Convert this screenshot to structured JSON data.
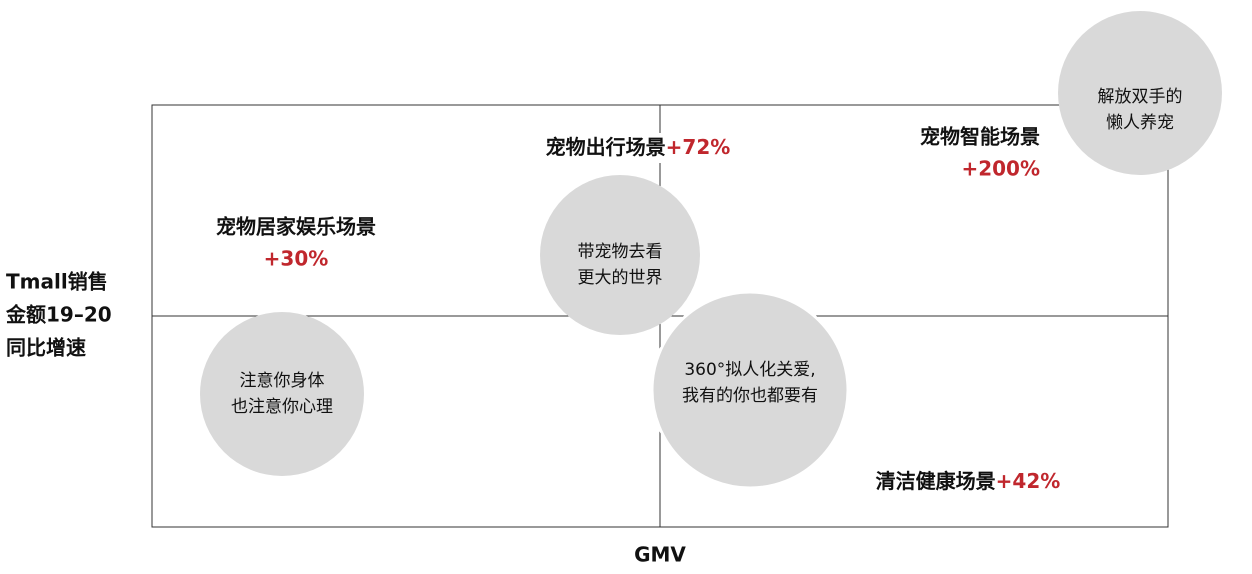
{
  "y_axis_label": [
    "Tmall销售",
    "金额19–20",
    "同比增速"
  ],
  "x_axis_label": "GMV",
  "quadrants": [
    {
      "scene": "宠物居家娱乐场景",
      "growth": "+30%"
    },
    {
      "scene": "宠物出行场景",
      "growth": "+72%"
    },
    {
      "scene": "宠物智能场景",
      "growth": "+200%"
    },
    {
      "scene": "清洁健康场景",
      "growth": "+42%"
    }
  ],
  "circles": [
    {
      "lines": [
        "注意你身体",
        "也注意你心理"
      ]
    },
    {
      "lines": [
        "带宠物去看",
        "更大的世界"
      ]
    },
    {
      "lines": [
        "360°拟人化关爱,",
        "我有的你也都要有"
      ]
    },
    {
      "lines": [
        "解放双手的",
        "懒人养宠"
      ]
    }
  ]
}
